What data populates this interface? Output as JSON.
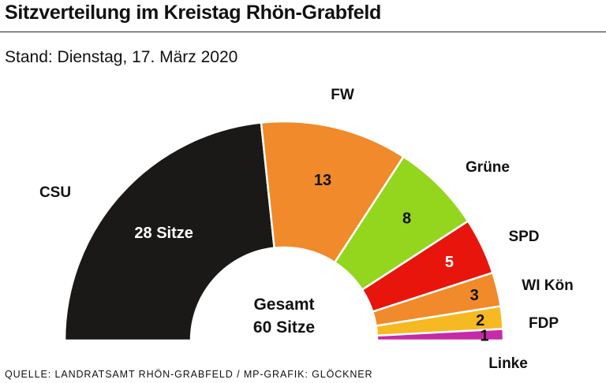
{
  "header": {
    "title": "Sitzverteilung im Kreistag Rhön-Grabfeld",
    "subtitle": "Stand: Dienstag, 17. März 2020"
  },
  "footer": {
    "source": "QUELLE: LANDRATSAMT RHÖN-GRABFELD / MP-GRAFIK: GLÖCKNER"
  },
  "chart_data": {
    "type": "pie",
    "subtype": "parliament-half-donut",
    "title": "Sitzverteilung im Kreistag Rhön-Grabfeld",
    "center_label": [
      "Gesamt",
      "60 Sitze"
    ],
    "total": 60,
    "series": [
      {
        "name": "CSU",
        "value": 28,
        "value_label": "28 Sitze",
        "color": "#1b1918",
        "label_color": "#ffffff"
      },
      {
        "name": "FW",
        "value": 13,
        "value_label": "13",
        "color": "#f08a2a",
        "label_color": "#111111"
      },
      {
        "name": "Grüne",
        "value": 8,
        "value_label": "8",
        "color": "#94d51e",
        "label_color": "#111111"
      },
      {
        "name": "SPD",
        "value": 5,
        "value_label": "5",
        "color": "#e8150d",
        "label_color": "#ffffff"
      },
      {
        "name": "WI Kön",
        "value": 3,
        "value_label": "3",
        "color": "#f08a2a",
        "label_color": "#111111"
      },
      {
        "name": "FDP",
        "value": 2,
        "value_label": "2",
        "color": "#f7b922",
        "label_color": "#111111"
      },
      {
        "name": "Linke",
        "value": 1,
        "value_label": "1",
        "color": "#c72aa9",
        "label_color": "#111111"
      }
    ]
  }
}
